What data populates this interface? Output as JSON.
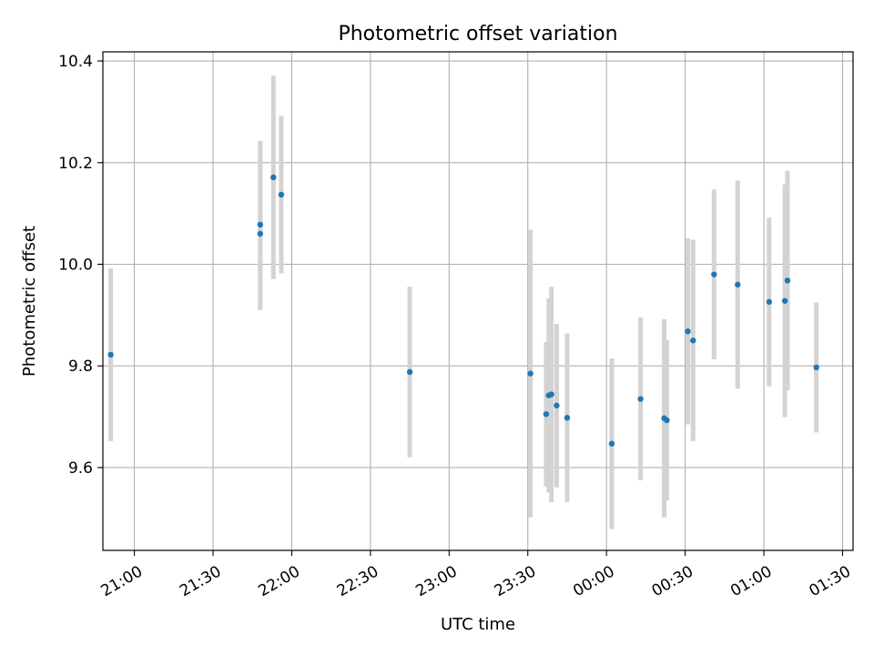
{
  "chart_data": {
    "type": "scatter",
    "title": "Photometric offset variation",
    "xlabel": "UTC time",
    "ylabel": "Photometric offset",
    "x_unit": "UTC time (HH:MM)",
    "xlim": [
      "20:48",
      "01:34"
    ],
    "ylim": [
      9.437,
      10.418
    ],
    "x_ticks": [
      "21:00",
      "21:30",
      "22:00",
      "22:30",
      "23:00",
      "23:30",
      "00:00",
      "00:30",
      "01:00",
      "01:30"
    ],
    "y_ticks": [
      9.6,
      9.8,
      10.0,
      10.2,
      10.4
    ],
    "y_tick_labels": [
      "9.6",
      "9.8",
      "10.0",
      "10.2",
      "10.4"
    ],
    "grid": true,
    "point_color": "#1f77b4",
    "errorbar_color": "#d3d3d3",
    "points": [
      {
        "x": "20:51",
        "y": 9.822,
        "err": 0.17
      },
      {
        "x": "21:48",
        "y": 10.078,
        "err": 0.165
      },
      {
        "x": "21:48",
        "y": 10.06,
        "err": 0.15
      },
      {
        "x": "21:53",
        "y": 10.171,
        "err": 0.2
      },
      {
        "x": "21:56",
        "y": 10.137,
        "err": 0.155
      },
      {
        "x": "22:45",
        "y": 9.788,
        "err": 0.168
      },
      {
        "x": "23:31",
        "y": 9.785,
        "err": 0.283
      },
      {
        "x": "23:37",
        "y": 9.705,
        "err": 0.142
      },
      {
        "x": "23:38",
        "y": 9.742,
        "err": 0.191
      },
      {
        "x": "23:39",
        "y": 9.744,
        "err": 0.212
      },
      {
        "x": "23:41",
        "y": 9.722,
        "err": 0.161
      },
      {
        "x": "23:45",
        "y": 9.698,
        "err": 0.166
      },
      {
        "x": "00:02",
        "y": 9.647,
        "err": 0.168
      },
      {
        "x": "00:13",
        "y": 9.735,
        "err": 0.16
      },
      {
        "x": "00:22",
        "y": 9.697,
        "err": 0.195
      },
      {
        "x": "00:23",
        "y": 9.693,
        "err": 0.158
      },
      {
        "x": "00:31",
        "y": 9.868,
        "err": 0.183
      },
      {
        "x": "00:33",
        "y": 9.85,
        "err": 0.198
      },
      {
        "x": "00:41",
        "y": 9.98,
        "err": 0.167
      },
      {
        "x": "00:50",
        "y": 9.96,
        "err": 0.205
      },
      {
        "x": "01:02",
        "y": 9.926,
        "err": 0.166
      },
      {
        "x": "01:08",
        "y": 9.928,
        "err": 0.229
      },
      {
        "x": "01:09",
        "y": 9.968,
        "err": 0.216
      },
      {
        "x": "01:20",
        "y": 9.797,
        "err": 0.128
      }
    ]
  }
}
